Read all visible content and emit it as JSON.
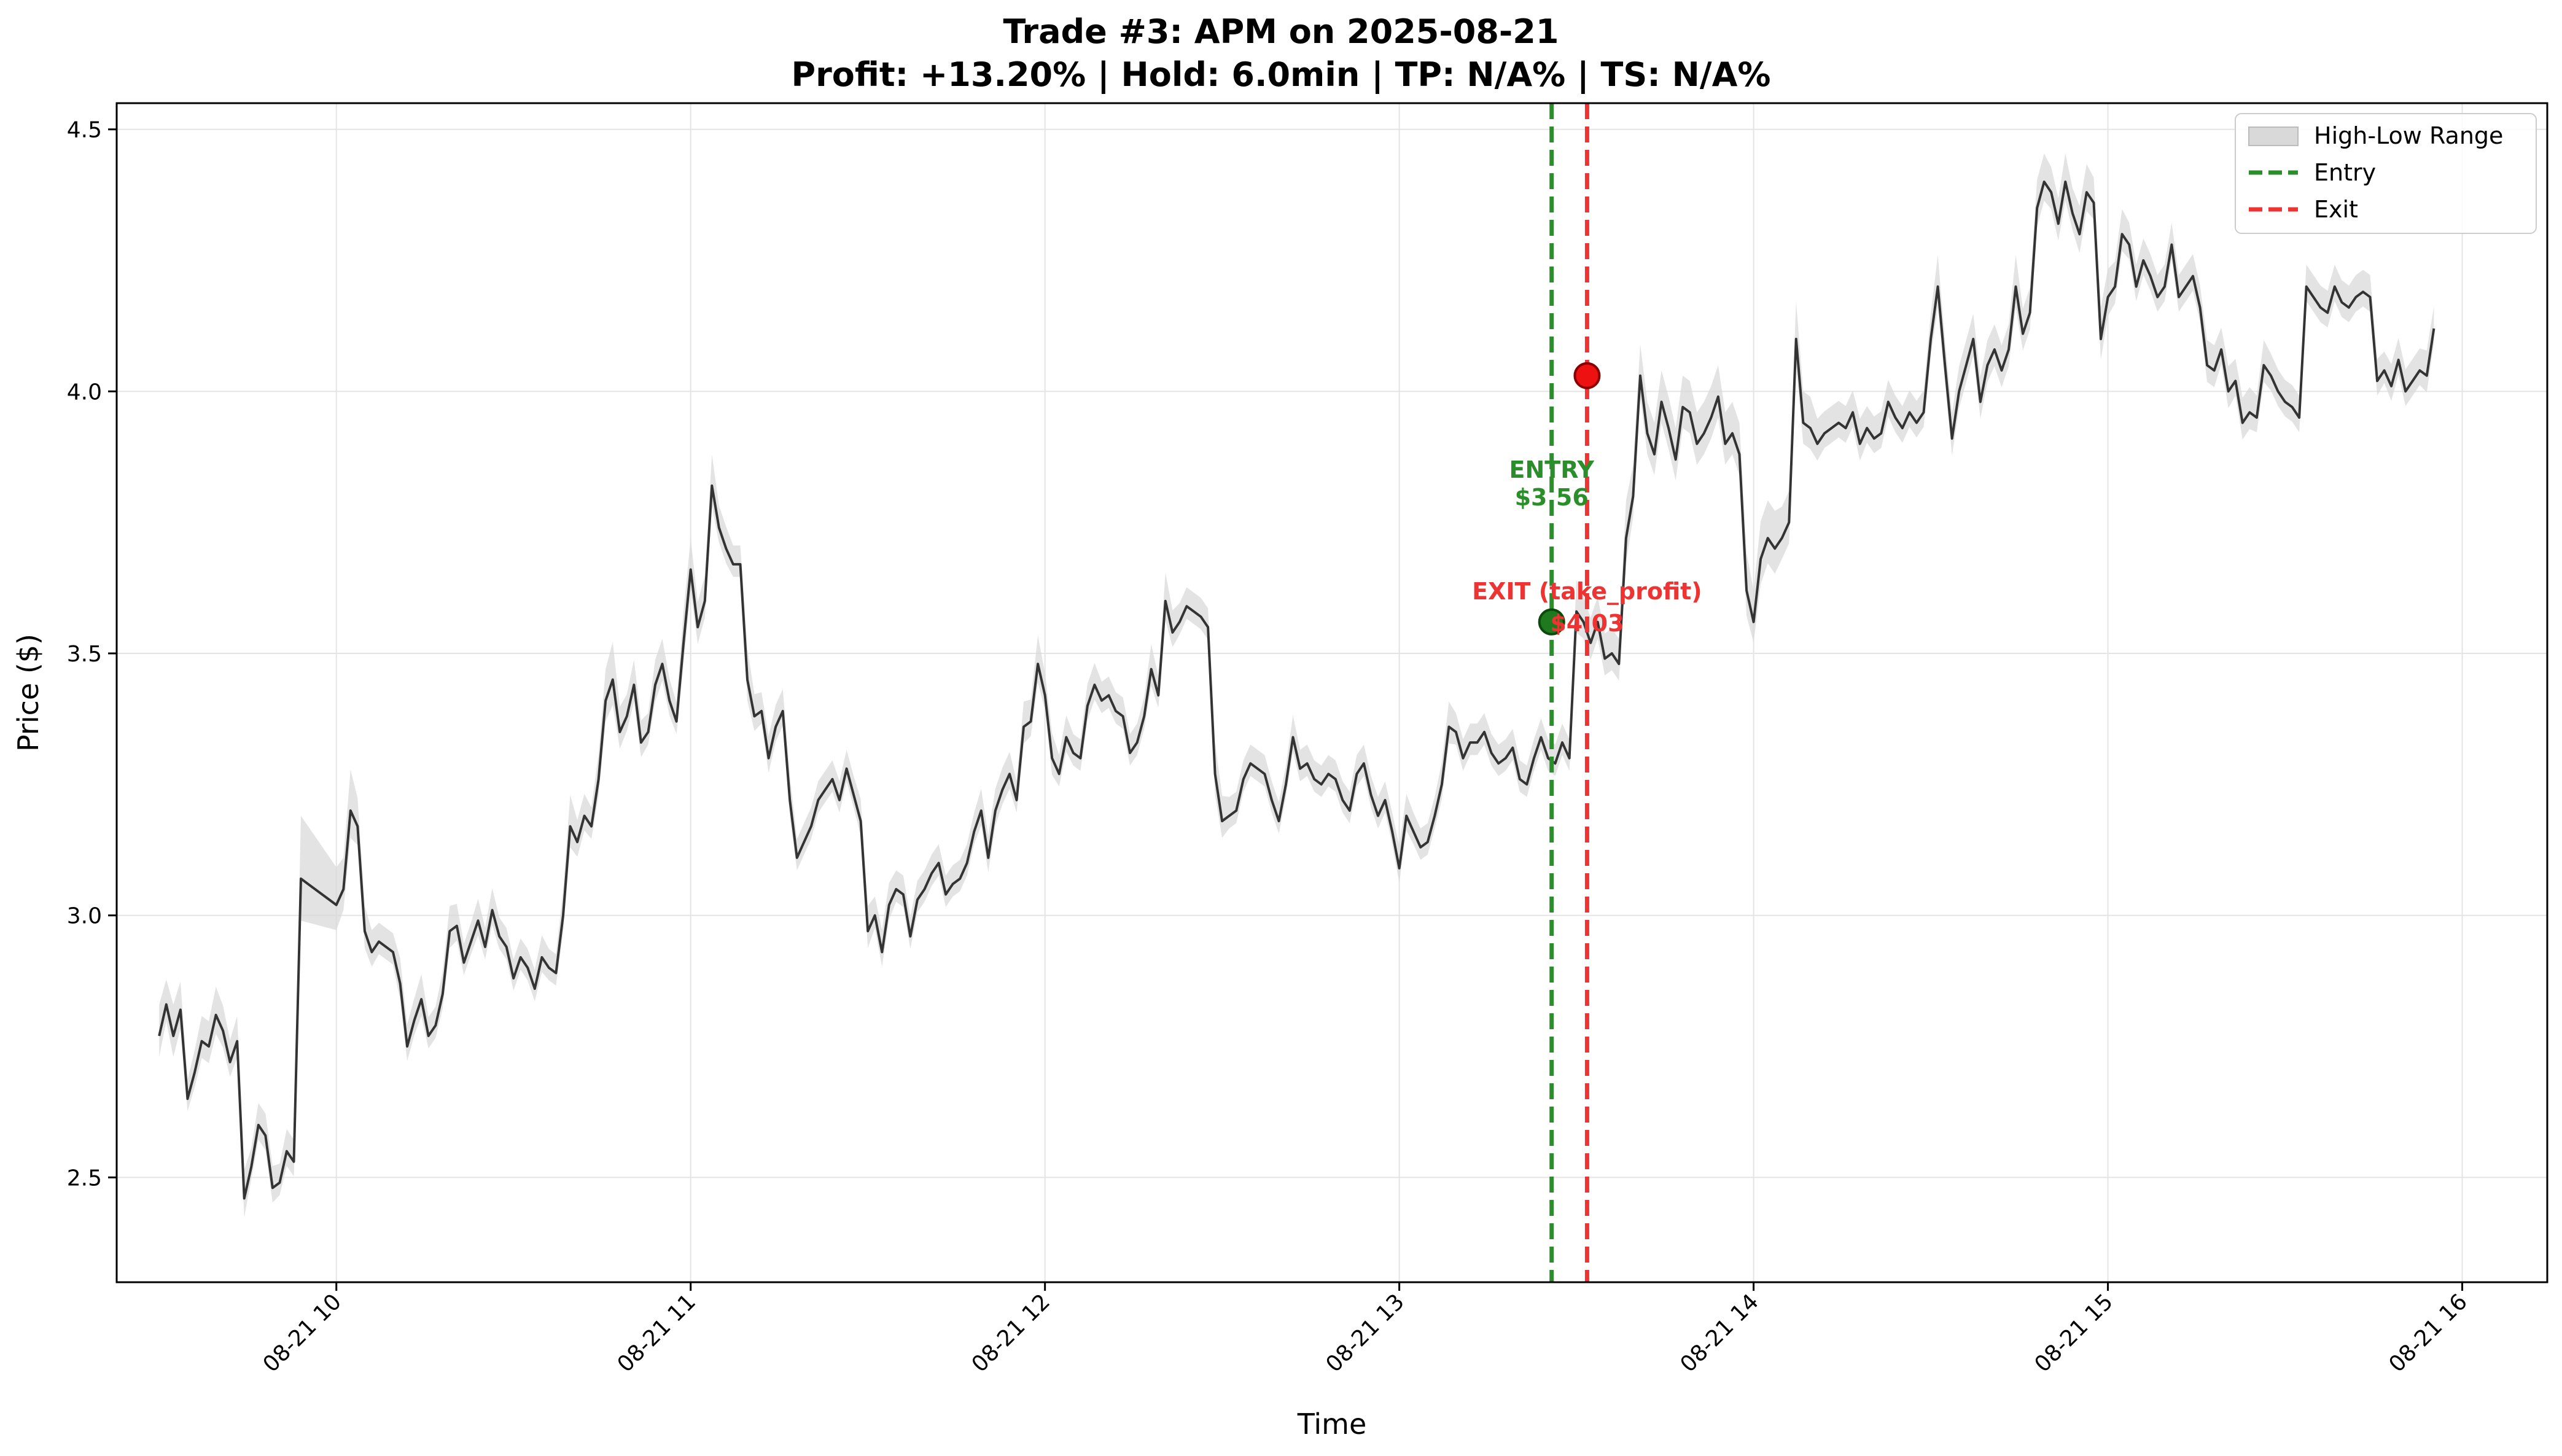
{
  "chart_data": {
    "type": "line",
    "title": "Trade #3: APM on 2025-08-21",
    "subtitle": "Profit: +13.20% | Hold: 6.0min | TP: N/A% | TS: N/A%",
    "xlabel": "Time",
    "ylabel": "Price ($)",
    "xlim": [
      9.38,
      16.24
    ],
    "ylim": [
      2.3,
      4.55
    ],
    "grid": true,
    "legend_position": "top-right",
    "x_ticks": [
      {
        "value": 10,
        "label": "08-21 10"
      },
      {
        "value": 11,
        "label": "08-21 11"
      },
      {
        "value": 12,
        "label": "08-21 12"
      },
      {
        "value": 13,
        "label": "08-21 13"
      },
      {
        "value": 14,
        "label": "08-21 14"
      },
      {
        "value": 15,
        "label": "08-21 15"
      },
      {
        "value": 16,
        "label": "08-21 16"
      }
    ],
    "y_ticks": [
      {
        "value": 2.5,
        "label": "2.5"
      },
      {
        "value": 3.0,
        "label": "3.0"
      },
      {
        "value": 3.5,
        "label": "3.5"
      },
      {
        "value": 4.0,
        "label": "4.0"
      },
      {
        "value": 4.5,
        "label": "4.5"
      }
    ],
    "legend": [
      {
        "label": "High-Low Range",
        "kind": "band",
        "color": "#d9d9d9"
      },
      {
        "label": "Entry",
        "kind": "dashed",
        "color": "#2a8f2a"
      },
      {
        "label": "Exit",
        "kind": "dashed",
        "color": "#ee3333"
      }
    ],
    "series": [
      {
        "kind": "price",
        "color": "#333333",
        "band_color": "#d9d9d9",
        "x": [
          9.5,
          9.52,
          9.54,
          9.56,
          9.58,
          9.6,
          9.62,
          9.64,
          9.66,
          9.68,
          9.7,
          9.72,
          9.74,
          9.76,
          9.78,
          9.8,
          9.82,
          9.84,
          9.86,
          9.88,
          9.9,
          10.0,
          10.02,
          10.04,
          10.06,
          10.08,
          10.1,
          10.12,
          10.14,
          10.16,
          10.18,
          10.2,
          10.22,
          10.24,
          10.26,
          10.28,
          10.3,
          10.32,
          10.34,
          10.36,
          10.38,
          10.4,
          10.42,
          10.44,
          10.46,
          10.48,
          10.5,
          10.52,
          10.54,
          10.56,
          10.58,
          10.6,
          10.62,
          10.64,
          10.66,
          10.68,
          10.7,
          10.72,
          10.74,
          10.76,
          10.78,
          10.8,
          10.82,
          10.84,
          10.86,
          10.88,
          10.9,
          10.92,
          10.94,
          10.96,
          10.98,
          11.0,
          11.02,
          11.04,
          11.06,
          11.08,
          11.1,
          11.12,
          11.14,
          11.16,
          11.18,
          11.2,
          11.22,
          11.24,
          11.26,
          11.28,
          11.3,
          11.32,
          11.34,
          11.36,
          11.38,
          11.4,
          11.42,
          11.44,
          11.46,
          11.48,
          11.5,
          11.52,
          11.54,
          11.56,
          11.58,
          11.6,
          11.62,
          11.64,
          11.66,
          11.68,
          11.7,
          11.72,
          11.74,
          11.76,
          11.78,
          11.8,
          11.82,
          11.84,
          11.86,
          11.88,
          11.9,
          11.92,
          11.94,
          11.96,
          11.98,
          12.0,
          12.02,
          12.04,
          12.06,
          12.08,
          12.1,
          12.12,
          12.14,
          12.16,
          12.18,
          12.2,
          12.22,
          12.24,
          12.26,
          12.28,
          12.3,
          12.32,
          12.34,
          12.36,
          12.38,
          12.4,
          12.42,
          12.44,
          12.46,
          12.48,
          12.5,
          12.52,
          12.54,
          12.56,
          12.58,
          12.6,
          12.62,
          12.64,
          12.66,
          12.68,
          12.7,
          12.72,
          12.74,
          12.76,
          12.78,
          12.8,
          12.82,
          12.84,
          12.86,
          12.88,
          12.9,
          12.92,
          12.94,
          12.96,
          12.98,
          13.0,
          13.02,
          13.04,
          13.06,
          13.08,
          13.1,
          13.12,
          13.14,
          13.16,
          13.18,
          13.2,
          13.22,
          13.24,
          13.26,
          13.28,
          13.3,
          13.32,
          13.34,
          13.36,
          13.38,
          13.4,
          13.42,
          13.44,
          13.46,
          13.48,
          13.5,
          13.52,
          13.54,
          13.56,
          13.58,
          13.6,
          13.62,
          13.64,
          13.66,
          13.68,
          13.7,
          13.72,
          13.74,
          13.76,
          13.78,
          13.8,
          13.82,
          13.84,
          13.86,
          13.88,
          13.9,
          13.92,
          13.94,
          13.96,
          13.98,
          14.0,
          14.02,
          14.04,
          14.06,
          14.08,
          14.1,
          14.12,
          14.14,
          14.16,
          14.18,
          14.2,
          14.22,
          14.24,
          14.26,
          14.28,
          14.3,
          14.32,
          14.34,
          14.36,
          14.38,
          14.4,
          14.42,
          14.44,
          14.46,
          14.48,
          14.5,
          14.52,
          14.54,
          14.56,
          14.58,
          14.6,
          14.62,
          14.64,
          14.66,
          14.68,
          14.7,
          14.72,
          14.74,
          14.76,
          14.78,
          14.8,
          14.82,
          14.84,
          14.86,
          14.88,
          14.9,
          14.92,
          14.94,
          14.96,
          14.98,
          15.0,
          15.02,
          15.04,
          15.06,
          15.08,
          15.1,
          15.12,
          15.14,
          15.16,
          15.18,
          15.2,
          15.22,
          15.24,
          15.26,
          15.28,
          15.3,
          15.32,
          15.34,
          15.36,
          15.38,
          15.4,
          15.42,
          15.44,
          15.46,
          15.48,
          15.5,
          15.52,
          15.54,
          15.56,
          15.58,
          15.6,
          15.62,
          15.64,
          15.66,
          15.68,
          15.7,
          15.72,
          15.74,
          15.76,
          15.78,
          15.8,
          15.82,
          15.84,
          15.86,
          15.88,
          15.9,
          15.92
        ],
        "close": [
          2.77,
          2.83,
          2.77,
          2.82,
          2.65,
          2.7,
          2.76,
          2.75,
          2.81,
          2.78,
          2.72,
          2.76,
          2.46,
          2.52,
          2.6,
          2.58,
          2.48,
          2.49,
          2.55,
          2.53,
          3.07,
          3.02,
          3.05,
          3.2,
          3.17,
          2.97,
          2.93,
          2.95,
          2.94,
          2.93,
          2.87,
          2.75,
          2.8,
          2.84,
          2.77,
          2.79,
          2.85,
          2.97,
          2.98,
          2.91,
          2.95,
          2.99,
          2.94,
          3.01,
          2.96,
          2.94,
          2.88,
          2.92,
          2.9,
          2.86,
          2.92,
          2.9,
          2.89,
          3.0,
          3.17,
          3.14,
          3.19,
          3.17,
          3.26,
          3.41,
          3.45,
          3.35,
          3.38,
          3.44,
          3.33,
          3.35,
          3.44,
          3.48,
          3.41,
          3.37,
          3.52,
          3.66,
          3.55,
          3.6,
          3.82,
          3.74,
          3.7,
          3.67,
          3.67,
          3.45,
          3.38,
          3.39,
          3.3,
          3.36,
          3.39,
          3.22,
          3.11,
          3.14,
          3.17,
          3.22,
          3.24,
          3.26,
          3.22,
          3.28,
          3.23,
          3.18,
          2.97,
          3.0,
          2.93,
          3.02,
          3.05,
          3.04,
          2.96,
          3.03,
          3.05,
          3.08,
          3.1,
          3.04,
          3.06,
          3.07,
          3.1,
          3.16,
          3.2,
          3.11,
          3.2,
          3.24,
          3.27,
          3.22,
          3.36,
          3.37,
          3.48,
          3.42,
          3.3,
          3.27,
          3.34,
          3.31,
          3.3,
          3.4,
          3.44,
          3.41,
          3.42,
          3.39,
          3.38,
          3.31,
          3.33,
          3.38,
          3.47,
          3.42,
          3.6,
          3.54,
          3.56,
          3.59,
          3.58,
          3.57,
          3.55,
          3.27,
          3.18,
          3.19,
          3.2,
          3.26,
          3.29,
          3.28,
          3.27,
          3.22,
          3.18,
          3.25,
          3.34,
          3.28,
          3.29,
          3.26,
          3.25,
          3.27,
          3.26,
          3.22,
          3.2,
          3.27,
          3.29,
          3.23,
          3.19,
          3.22,
          3.16,
          3.09,
          3.19,
          3.16,
          3.13,
          3.14,
          3.19,
          3.25,
          3.36,
          3.35,
          3.3,
          3.33,
          3.33,
          3.35,
          3.31,
          3.29,
          3.3,
          3.32,
          3.26,
          3.25,
          3.3,
          3.34,
          3.3,
          3.29,
          3.33,
          3.3,
          3.58,
          3.56,
          3.52,
          3.56,
          3.49,
          3.5,
          3.48,
          3.72,
          3.8,
          4.03,
          3.92,
          3.88,
          3.98,
          3.93,
          3.87,
          3.97,
          3.96,
          3.9,
          3.92,
          3.95,
          3.99,
          3.9,
          3.92,
          3.88,
          3.62,
          3.56,
          3.68,
          3.72,
          3.7,
          3.72,
          3.75,
          4.1,
          3.94,
          3.93,
          3.9,
          3.92,
          3.93,
          3.94,
          3.93,
          3.96,
          3.9,
          3.93,
          3.91,
          3.92,
          3.98,
          3.95,
          3.93,
          3.96,
          3.94,
          3.96,
          4.1,
          4.2,
          4.05,
          3.91,
          4.0,
          4.05,
          4.1,
          3.98,
          4.05,
          4.08,
          4.04,
          4.08,
          4.2,
          4.11,
          4.15,
          4.35,
          4.4,
          4.38,
          4.32,
          4.4,
          4.34,
          4.3,
          4.38,
          4.36,
          4.1,
          4.18,
          4.2,
          4.3,
          4.28,
          4.2,
          4.25,
          4.22,
          4.18,
          4.2,
          4.28,
          4.18,
          4.2,
          4.22,
          4.16,
          4.05,
          4.04,
          4.08,
          4.0,
          4.02,
          3.94,
          3.96,
          3.95,
          4.05,
          4.03,
          4.0,
          3.98,
          3.97,
          3.95,
          4.2,
          4.18,
          4.16,
          4.15,
          4.2,
          4.17,
          4.16,
          4.18,
          4.19,
          4.18,
          4.02,
          4.04,
          4.01,
          4.06,
          4.0,
          4.02,
          4.04,
          4.03,
          4.12
        ]
      }
    ],
    "band_width": [
      0.1,
      0.08,
      0.1,
      0.09,
      0.06,
      0.07,
      0.08,
      0.08,
      0.09,
      0.08,
      0.07,
      0.08,
      0.09,
      0.06,
      0.07,
      0.07,
      0.07,
      0.06,
      0.07,
      0.07,
      0.2,
      0.12,
      0.1,
      0.13,
      0.09,
      0.08,
      0.07,
      0.06,
      0.06,
      0.06,
      0.08,
      0.07,
      0.07,
      0.08,
      0.06,
      0.06,
      0.07,
      0.08,
      0.07,
      0.06,
      0.06,
      0.07,
      0.06,
      0.07,
      0.06,
      0.06,
      0.06,
      0.06,
      0.06,
      0.06,
      0.07,
      0.06,
      0.06,
      0.08,
      0.1,
      0.07,
      0.07,
      0.06,
      0.08,
      0.1,
      0.12,
      0.08,
      0.07,
      0.08,
      0.07,
      0.06,
      0.08,
      0.08,
      0.07,
      0.06,
      0.1,
      0.1,
      0.08,
      0.08,
      0.1,
      0.07,
      0.07,
      0.06,
      0.06,
      0.1,
      0.07,
      0.06,
      0.07,
      0.07,
      0.07,
      0.08,
      0.06,
      0.06,
      0.06,
      0.06,
      0.06,
      0.06,
      0.06,
      0.06,
      0.06,
      0.07,
      0.08,
      0.06,
      0.07,
      0.07,
      0.06,
      0.06,
      0.06,
      0.06,
      0.06,
      0.06,
      0.06,
      0.06,
      0.06,
      0.06,
      0.06,
      0.06,
      0.07,
      0.07,
      0.07,
      0.07,
      0.07,
      0.06,
      0.08,
      0.07,
      0.09,
      0.07,
      0.08,
      0.06,
      0.07,
      0.06,
      0.06,
      0.07,
      0.07,
      0.06,
      0.06,
      0.06,
      0.06,
      0.06,
      0.06,
      0.06,
      0.08,
      0.06,
      0.09,
      0.07,
      0.06,
      0.06,
      0.06,
      0.06,
      0.06,
      0.1,
      0.08,
      0.06,
      0.06,
      0.06,
      0.06,
      0.06,
      0.06,
      0.06,
      0.06,
      0.06,
      0.07,
      0.06,
      0.06,
      0.06,
      0.06,
      0.06,
      0.06,
      0.06,
      0.06,
      0.06,
      0.06,
      0.06,
      0.06,
      0.06,
      0.06,
      0.07,
      0.07,
      0.06,
      0.06,
      0.06,
      0.06,
      0.07,
      0.08,
      0.06,
      0.06,
      0.06,
      0.06,
      0.06,
      0.06,
      0.06,
      0.06,
      0.06,
      0.06,
      0.06,
      0.06,
      0.06,
      0.06,
      0.06,
      0.06,
      0.06,
      0.1,
      0.08,
      0.08,
      0.08,
      0.08,
      0.08,
      0.08,
      0.12,
      0.1,
      0.1,
      0.1,
      0.1,
      0.1,
      0.1,
      0.1,
      0.1,
      0.1,
      0.1,
      0.1,
      0.1,
      0.1,
      0.1,
      0.1,
      0.1,
      0.12,
      0.1,
      0.12,
      0.12,
      0.12,
      0.1,
      0.1,
      0.12,
      0.1,
      0.1,
      0.08,
      0.07,
      0.07,
      0.07,
      0.07,
      0.07,
      0.08,
      0.07,
      0.07,
      0.07,
      0.07,
      0.07,
      0.07,
      0.07,
      0.07,
      0.07,
      0.08,
      0.1,
      0.08,
      0.08,
      0.08,
      0.08,
      0.08,
      0.08,
      0.08,
      0.08,
      0.08,
      0.08,
      0.1,
      0.08,
      0.08,
      0.09,
      0.09,
      0.08,
      0.08,
      0.09,
      0.08,
      0.09,
      0.09,
      0.08,
      0.1,
      0.09,
      0.08,
      0.08,
      0.07,
      0.07,
      0.07,
      0.07,
      0.07,
      0.07,
      0.07,
      0.07,
      0.07,
      0.07,
      0.07,
      0.08,
      0.08,
      0.07,
      0.08,
      0.07,
      0.08,
      0.08,
      0.07,
      0.08,
      0.07,
      0.07,
      0.07,
      0.07,
      0.07,
      0.07,
      0.07,
      0.07,
      0.07,
      0.07,
      0.07,
      0.07,
      0.07,
      0.07,
      0.07,
      0.07,
      0.06,
      0.07,
      0.07,
      0.07,
      0.07,
      0.07,
      0.08
    ],
    "entry": {
      "x": 13.43,
      "price": 3.56,
      "label_line1": "ENTRY",
      "label_line2": "$3.56",
      "color": "#2a8f2a",
      "marker_color": "#1f7a1f"
    },
    "exit": {
      "x": 13.53,
      "price": 4.03,
      "label_line1": "EXIT (take_profit)",
      "label_line2": "$4.03",
      "color": "#ee3333",
      "marker_color": "#ee1111"
    }
  }
}
